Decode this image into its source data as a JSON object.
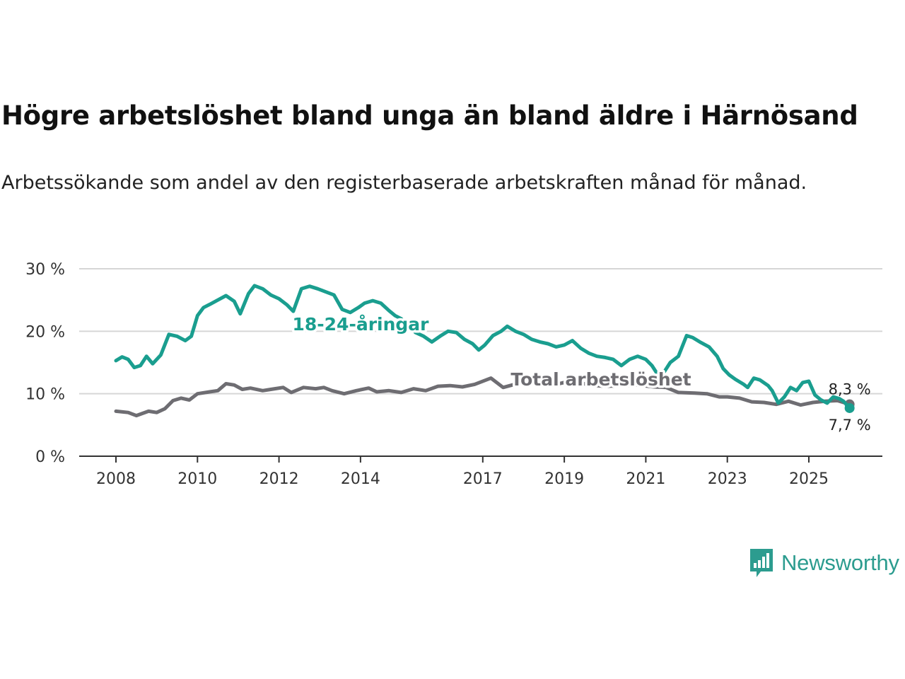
{
  "chart_data": {
    "type": "line",
    "title": "Högre arbetslöshet bland unga än bland äldre i Härnösand",
    "subtitle": "Arbetssökande som andel av den registerbaserade arbetskraften månad för månad.",
    "xlabel": "",
    "ylabel": "",
    "ylim": [
      0,
      30
    ],
    "xlim": [
      2007.3,
      2026.9
    ],
    "yticks": [
      0,
      10,
      20,
      30
    ],
    "ytick_labels": [
      "0 %",
      "10 %",
      "20 %",
      "30 %"
    ],
    "xticks": [
      2008,
      2010,
      2012,
      2014,
      2017,
      2019,
      2021,
      2023,
      2025
    ],
    "xtick_labels": [
      "2008",
      "2010",
      "2012",
      "2014",
      "2017",
      "2019",
      "2021",
      "2023",
      "2025"
    ],
    "grid": true,
    "series": [
      {
        "name": "Total arbetslöshet",
        "label": "Total arbetslöshet",
        "color": "#6e6d72",
        "end_label": "8,3 %",
        "points": [
          [
            2008.0,
            7.2
          ],
          [
            2008.3,
            7.0
          ],
          [
            2008.5,
            6.5
          ],
          [
            2008.8,
            7.2
          ],
          [
            2009.0,
            7.0
          ],
          [
            2009.2,
            7.6
          ],
          [
            2009.4,
            8.9
          ],
          [
            2009.6,
            9.3
          ],
          [
            2009.8,
            9.0
          ],
          [
            2010.0,
            10.0
          ],
          [
            2010.3,
            10.3
          ],
          [
            2010.5,
            10.5
          ],
          [
            2010.7,
            11.6
          ],
          [
            2010.9,
            11.4
          ],
          [
            2011.1,
            10.7
          ],
          [
            2011.3,
            10.9
          ],
          [
            2011.6,
            10.5
          ],
          [
            2011.9,
            10.8
          ],
          [
            2012.1,
            11.0
          ],
          [
            2012.3,
            10.2
          ],
          [
            2012.6,
            11.0
          ],
          [
            2012.9,
            10.8
          ],
          [
            2013.1,
            11.0
          ],
          [
            2013.3,
            10.5
          ],
          [
            2013.6,
            10.0
          ],
          [
            2013.9,
            10.5
          ],
          [
            2014.2,
            10.9
          ],
          [
            2014.4,
            10.3
          ],
          [
            2014.7,
            10.5
          ],
          [
            2015.0,
            10.2
          ],
          [
            2015.3,
            10.8
          ],
          [
            2015.6,
            10.5
          ],
          [
            2015.9,
            11.2
          ],
          [
            2016.2,
            11.3
          ],
          [
            2016.5,
            11.1
          ],
          [
            2016.8,
            11.5
          ],
          [
            2017.2,
            12.5
          ],
          [
            2017.5,
            11.0
          ],
          [
            2017.9,
            11.7
          ],
          [
            2018.2,
            12.1
          ],
          [
            2018.5,
            11.8
          ],
          [
            2018.8,
            11.5
          ],
          [
            2019.2,
            12.1
          ],
          [
            2019.6,
            11.4
          ],
          [
            2020.0,
            11.2
          ],
          [
            2020.4,
            11.3
          ],
          [
            2020.8,
            11.4
          ],
          [
            2021.2,
            11.1
          ],
          [
            2021.5,
            11.0
          ],
          [
            2021.8,
            10.2
          ],
          [
            2022.2,
            10.1
          ],
          [
            2022.5,
            10.0
          ],
          [
            2022.8,
            9.5
          ],
          [
            2023.0,
            9.5
          ],
          [
            2023.3,
            9.3
          ],
          [
            2023.6,
            8.7
          ],
          [
            2023.9,
            8.6
          ],
          [
            2024.2,
            8.3
          ],
          [
            2024.5,
            8.8
          ],
          [
            2024.8,
            8.2
          ],
          [
            2025.1,
            8.6
          ],
          [
            2025.4,
            8.8
          ],
          [
            2025.7,
            8.9
          ],
          [
            2025.9,
            8.5
          ],
          [
            2026.0,
            8.3
          ]
        ]
      },
      {
        "name": "18-24-åringar",
        "label": "18-24-åringar",
        "color": "#1a9e8f",
        "end_label": "7,7 %",
        "points": [
          [
            2008.0,
            15.3
          ],
          [
            2008.15,
            15.9
          ],
          [
            2008.3,
            15.5
          ],
          [
            2008.45,
            14.2
          ],
          [
            2008.6,
            14.5
          ],
          [
            2008.75,
            16.0
          ],
          [
            2008.9,
            14.8
          ],
          [
            2009.1,
            16.2
          ],
          [
            2009.3,
            19.5
          ],
          [
            2009.5,
            19.2
          ],
          [
            2009.7,
            18.5
          ],
          [
            2009.85,
            19.2
          ],
          [
            2010.0,
            22.5
          ],
          [
            2010.15,
            23.8
          ],
          [
            2010.3,
            24.3
          ],
          [
            2010.5,
            25.0
          ],
          [
            2010.7,
            25.7
          ],
          [
            2010.9,
            24.8
          ],
          [
            2011.05,
            22.8
          ],
          [
            2011.25,
            26.0
          ],
          [
            2011.4,
            27.3
          ],
          [
            2011.6,
            26.8
          ],
          [
            2011.8,
            25.8
          ],
          [
            2012.0,
            25.2
          ],
          [
            2012.2,
            24.2
          ],
          [
            2012.35,
            23.2
          ],
          [
            2012.55,
            26.8
          ],
          [
            2012.75,
            27.2
          ],
          [
            2012.95,
            26.8
          ],
          [
            2013.15,
            26.3
          ],
          [
            2013.35,
            25.8
          ],
          [
            2013.55,
            23.5
          ],
          [
            2013.75,
            23.0
          ],
          [
            2013.95,
            23.8
          ],
          [
            2014.1,
            24.5
          ],
          [
            2014.3,
            24.9
          ],
          [
            2014.5,
            24.5
          ],
          [
            2014.7,
            23.3
          ],
          [
            2014.85,
            22.5
          ],
          [
            2015.0,
            22.0
          ],
          [
            2015.15,
            21.0
          ],
          [
            2015.35,
            19.8
          ],
          [
            2015.55,
            19.2
          ],
          [
            2015.75,
            18.3
          ],
          [
            2015.95,
            19.2
          ],
          [
            2016.15,
            20.0
          ],
          [
            2016.35,
            19.8
          ],
          [
            2016.55,
            18.7
          ],
          [
            2016.75,
            18.0
          ],
          [
            2016.9,
            17.0
          ],
          [
            2017.05,
            17.8
          ],
          [
            2017.25,
            19.3
          ],
          [
            2017.45,
            20.0
          ],
          [
            2017.6,
            20.8
          ],
          [
            2017.8,
            20.0
          ],
          [
            2018.0,
            19.5
          ],
          [
            2018.2,
            18.7
          ],
          [
            2018.4,
            18.3
          ],
          [
            2018.6,
            18.0
          ],
          [
            2018.8,
            17.5
          ],
          [
            2019.0,
            17.8
          ],
          [
            2019.2,
            18.5
          ],
          [
            2019.4,
            17.3
          ],
          [
            2019.6,
            16.5
          ],
          [
            2019.8,
            16.0
          ],
          [
            2020.0,
            15.8
          ],
          [
            2020.2,
            15.5
          ],
          [
            2020.4,
            14.5
          ],
          [
            2020.6,
            15.5
          ],
          [
            2020.8,
            16.0
          ],
          [
            2021.0,
            15.5
          ],
          [
            2021.15,
            14.5
          ],
          [
            2021.3,
            13.0
          ],
          [
            2021.45,
            13.5
          ],
          [
            2021.6,
            15.0
          ],
          [
            2021.8,
            16.0
          ],
          [
            2022.0,
            19.3
          ],
          [
            2022.15,
            19.0
          ],
          [
            2022.35,
            18.2
          ],
          [
            2022.55,
            17.5
          ],
          [
            2022.75,
            16.0
          ],
          [
            2022.9,
            14.0
          ],
          [
            2023.05,
            13.0
          ],
          [
            2023.2,
            12.3
          ],
          [
            2023.4,
            11.5
          ],
          [
            2023.5,
            11.0
          ],
          [
            2023.65,
            12.5
          ],
          [
            2023.8,
            12.2
          ],
          [
            2024.0,
            11.3
          ],
          [
            2024.1,
            10.5
          ],
          [
            2024.25,
            8.5
          ],
          [
            2024.4,
            9.5
          ],
          [
            2024.55,
            11.0
          ],
          [
            2024.7,
            10.5
          ],
          [
            2024.85,
            11.8
          ],
          [
            2025.0,
            12.0
          ],
          [
            2025.15,
            9.8
          ],
          [
            2025.3,
            9.0
          ],
          [
            2025.45,
            8.5
          ],
          [
            2025.6,
            9.5
          ],
          [
            2025.75,
            9.2
          ],
          [
            2025.85,
            8.8
          ],
          [
            2026.0,
            7.7
          ]
        ]
      }
    ]
  },
  "branding": {
    "logo_text": "Newsworthy",
    "logo_icon": "bar-chart-speech-bubble-icon",
    "logo_color": "#2c9c8f"
  },
  "colors": {
    "grid": "#d6d6d6",
    "axis": "#333333",
    "background": "#ffffff"
  }
}
